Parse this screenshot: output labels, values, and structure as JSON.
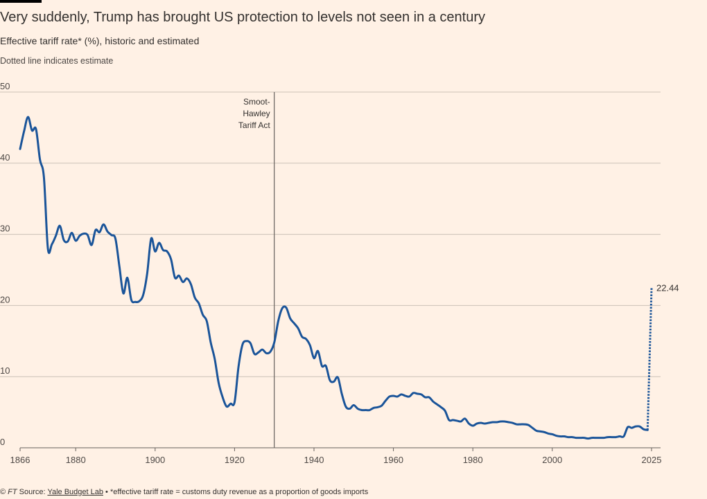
{
  "header": {
    "title": "Very suddenly, Trump has brought US protection to levels not seen in a century",
    "subtitle": "Effective tariff rate* (%), historic and estimated",
    "note": "Dotted line indicates estimate"
  },
  "footer": {
    "copyright": "© ",
    "brand": "FT",
    "source_prefix": " Source: ",
    "source_link": "Yale Budget Lab",
    "separator": " • ",
    "footnote": "*effective tariff rate = customs duty revenue as a proportion of goods imports"
  },
  "chart_data": {
    "type": "line",
    "title": "Very suddenly, Trump has brought US protection to levels not seen in a century",
    "subtitle": "Effective tariff rate* (%), historic and estimated",
    "xlabel": "",
    "ylabel": "",
    "xlim": [
      1866,
      2025
    ],
    "ylim": [
      0,
      50
    ],
    "x_ticks": [
      "1866",
      "1880",
      "1900",
      "1920",
      "1940",
      "1960",
      "1980",
      "2000",
      "2025"
    ],
    "y_ticks": [
      "0",
      "10",
      "20",
      "30",
      "40",
      "50"
    ],
    "grid": true,
    "line_color": "#1a5499",
    "annotation": {
      "x": 1930,
      "lines": [
        "Smoot-",
        "Hawley",
        "Tariff Act"
      ]
    },
    "end_label": "22.44",
    "series": [
      {
        "name": "",
        "style": "solid",
        "points": [
          [
            1866,
            42
          ],
          [
            1867,
            44.5
          ],
          [
            1868,
            46.5
          ],
          [
            1869,
            44.6
          ],
          [
            1870,
            44.8
          ],
          [
            1871,
            40.5
          ],
          [
            1872,
            38
          ],
          [
            1873,
            28
          ],
          [
            1874,
            28.6
          ],
          [
            1875,
            29.8
          ],
          [
            1876,
            31.2
          ],
          [
            1877,
            29.2
          ],
          [
            1878,
            29
          ],
          [
            1879,
            30.2
          ],
          [
            1880,
            29.1
          ],
          [
            1881,
            29.8
          ],
          [
            1882,
            30.1
          ],
          [
            1883,
            29.9
          ],
          [
            1884,
            28.5
          ],
          [
            1885,
            30.6
          ],
          [
            1886,
            30.3
          ],
          [
            1887,
            31.4
          ],
          [
            1888,
            30.4
          ],
          [
            1889,
            29.9
          ],
          [
            1890,
            29.4
          ],
          [
            1891,
            25.5
          ],
          [
            1892,
            21.7
          ],
          [
            1893,
            23.9
          ],
          [
            1894,
            20.8
          ],
          [
            1895,
            20.5
          ],
          [
            1896,
            20.6
          ],
          [
            1897,
            21.5
          ],
          [
            1898,
            24.5
          ],
          [
            1899,
            29.4
          ],
          [
            1900,
            27.6
          ],
          [
            1901,
            28.8
          ],
          [
            1902,
            27.8
          ],
          [
            1903,
            27.6
          ],
          [
            1904,
            26.5
          ],
          [
            1905,
            23.9
          ],
          [
            1906,
            24.2
          ],
          [
            1907,
            23.3
          ],
          [
            1908,
            23.8
          ],
          [
            1909,
            23
          ],
          [
            1910,
            21.1
          ],
          [
            1911,
            20.3
          ],
          [
            1912,
            18.7
          ],
          [
            1913,
            17.8
          ],
          [
            1914,
            14.8
          ],
          [
            1915,
            12.5
          ],
          [
            1916,
            9.1
          ],
          [
            1917,
            7.1
          ],
          [
            1918,
            5.8
          ],
          [
            1919,
            6.2
          ],
          [
            1920,
            6.4
          ],
          [
            1921,
            11.4
          ],
          [
            1922,
            14.5
          ],
          [
            1923,
            15
          ],
          [
            1924,
            14.7
          ],
          [
            1925,
            13.2
          ],
          [
            1926,
            13.4
          ],
          [
            1927,
            13.8
          ],
          [
            1928,
            13.3
          ],
          [
            1929,
            13.5
          ],
          [
            1930,
            14.8
          ],
          [
            1931,
            17.8
          ],
          [
            1932,
            19.6
          ],
          [
            1933,
            19.7
          ],
          [
            1934,
            18.2
          ],
          [
            1935,
            17.5
          ],
          [
            1936,
            16.8
          ],
          [
            1937,
            15.6
          ],
          [
            1938,
            15.3
          ],
          [
            1939,
            14.4
          ],
          [
            1940,
            12.6
          ],
          [
            1941,
            13.6
          ],
          [
            1942,
            11.5
          ],
          [
            1943,
            11.5
          ],
          [
            1944,
            9.5
          ],
          [
            1945,
            9.3
          ],
          [
            1946,
            9.9
          ],
          [
            1947,
            7.6
          ],
          [
            1948,
            5.8
          ],
          [
            1949,
            5.5
          ],
          [
            1950,
            6
          ],
          [
            1951,
            5.5
          ],
          [
            1952,
            5.3
          ],
          [
            1953,
            5.3
          ],
          [
            1954,
            5.3
          ],
          [
            1955,
            5.6
          ],
          [
            1956,
            5.7
          ],
          [
            1957,
            5.9
          ],
          [
            1958,
            6.6
          ],
          [
            1959,
            7.2
          ],
          [
            1960,
            7.3
          ],
          [
            1961,
            7.2
          ],
          [
            1962,
            7.5
          ],
          [
            1963,
            7.3
          ],
          [
            1964,
            7.2
          ],
          [
            1965,
            7.7
          ],
          [
            1966,
            7.6
          ],
          [
            1967,
            7.5
          ],
          [
            1968,
            7.1
          ],
          [
            1969,
            7.1
          ],
          [
            1970,
            6.5
          ],
          [
            1971,
            6.1
          ],
          [
            1972,
            5.7
          ],
          [
            1973,
            5.2
          ],
          [
            1974,
            3.9
          ],
          [
            1975,
            3.9
          ],
          [
            1976,
            3.8
          ],
          [
            1977,
            3.7
          ],
          [
            1978,
            4.1
          ],
          [
            1979,
            3.4
          ],
          [
            1980,
            3.1
          ],
          [
            1981,
            3.4
          ],
          [
            1982,
            3.5
          ],
          [
            1983,
            3.4
          ],
          [
            1984,
            3.5
          ],
          [
            1985,
            3.6
          ],
          [
            1986,
            3.6
          ],
          [
            1987,
            3.7
          ],
          [
            1988,
            3.7
          ],
          [
            1989,
            3.6
          ],
          [
            1990,
            3.5
          ],
          [
            1991,
            3.3
          ],
          [
            1992,
            3.3
          ],
          [
            1993,
            3.3
          ],
          [
            1994,
            3.2
          ],
          [
            1995,
            2.8
          ],
          [
            1996,
            2.4
          ],
          [
            1997,
            2.3
          ],
          [
            1998,
            2.2
          ],
          [
            1999,
            2.0
          ],
          [
            2000,
            1.9
          ],
          [
            2001,
            1.7
          ],
          [
            2002,
            1.6
          ],
          [
            2003,
            1.6
          ],
          [
            2004,
            1.5
          ],
          [
            2005,
            1.5
          ],
          [
            2006,
            1.4
          ],
          [
            2007,
            1.4
          ],
          [
            2008,
            1.4
          ],
          [
            2009,
            1.3
          ],
          [
            2010,
            1.4
          ],
          [
            2011,
            1.4
          ],
          [
            2012,
            1.4
          ],
          [
            2013,
            1.4
          ],
          [
            2014,
            1.5
          ],
          [
            2015,
            1.5
          ],
          [
            2016,
            1.5
          ],
          [
            2017,
            1.6
          ],
          [
            2018,
            1.6
          ],
          [
            2019,
            2.9
          ],
          [
            2020,
            2.8
          ],
          [
            2021,
            3
          ],
          [
            2022,
            3
          ],
          [
            2023,
            2.6
          ],
          [
            2024,
            2.5
          ]
        ]
      },
      {
        "name": "",
        "style": "dotted",
        "points": [
          [
            2024,
            2.5
          ],
          [
            2025,
            22.44
          ]
        ]
      }
    ]
  }
}
